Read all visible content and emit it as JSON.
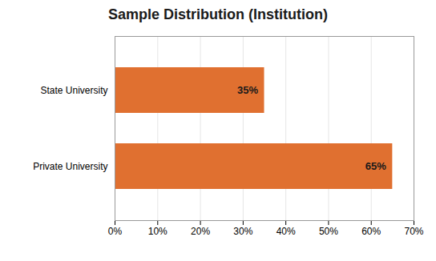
{
  "chart_data": {
    "type": "bar",
    "title": "Sample Distribution (Institution)",
    "orientation": "horizontal",
    "categories": [
      "Private University",
      "State University"
    ],
    "values": [
      65,
      35
    ],
    "value_labels": [
      "65%",
      "35%"
    ],
    "data_labels": true,
    "color": "#E07030",
    "xlim": [
      0,
      70
    ],
    "xticks": [
      {
        "value": 0,
        "label": "0%"
      },
      {
        "value": 10,
        "label": "10%"
      },
      {
        "value": 20,
        "label": "20%"
      },
      {
        "value": 30,
        "label": "30%"
      },
      {
        "value": 40,
        "label": "40%"
      },
      {
        "value": 50,
        "label": "50%"
      },
      {
        "value": 60,
        "label": "60%"
      },
      {
        "value": 70,
        "label": "70%"
      }
    ],
    "grid": true
  }
}
